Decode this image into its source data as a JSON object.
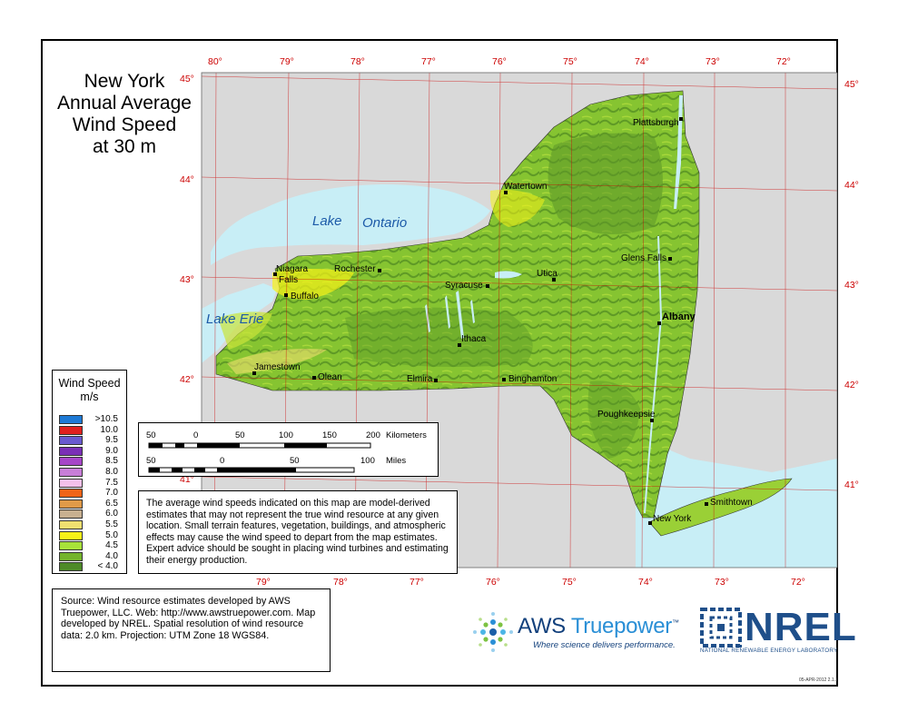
{
  "title": {
    "line1": "New York",
    "line2": "Annual Average",
    "line3": "Wind Speed",
    "line4": "at 30 m"
  },
  "longitude_labels_top": [
    "80°",
    "79°",
    "78°",
    "77°",
    "76°",
    "75°",
    "74°",
    "73°",
    "72°"
  ],
  "longitude_labels_bottom": [
    "79°",
    "78°",
    "77°",
    "76°",
    "75°",
    "74°",
    "73°",
    "72°"
  ],
  "latitude_labels_left": [
    "45°",
    "44°",
    "43°",
    "42°",
    "41°"
  ],
  "latitude_labels_right": [
    "45°",
    "44°",
    "43°",
    "42°",
    "41°"
  ],
  "lakes": {
    "ontario_1": "Lake",
    "ontario_2": "Ontario",
    "erie": "Lake Erie"
  },
  "cities": [
    {
      "name": "Plattsburgh"
    },
    {
      "name": "Watertown"
    },
    {
      "name": "Glens Falls"
    },
    {
      "name": "Niagara"
    },
    {
      "name": "Falls"
    },
    {
      "name": "Rochester"
    },
    {
      "name": "Buffalo"
    },
    {
      "name": "Utica"
    },
    {
      "name": "Syracuse"
    },
    {
      "name": "Albany"
    },
    {
      "name": "Ithaca"
    },
    {
      "name": "Jamestown"
    },
    {
      "name": "Olean"
    },
    {
      "name": "Elmira"
    },
    {
      "name": "Binghamton"
    },
    {
      "name": "Poughkeepsie"
    },
    {
      "name": "Smithtown"
    },
    {
      "name": "New York"
    }
  ],
  "legend": {
    "title1": "Wind Speed",
    "title2": "m/s",
    "entries": [
      {
        "label": ">10.5",
        "color": "#1e7ad6"
      },
      {
        "label": "10.0",
        "color": "#e0201e"
      },
      {
        "label": "9.5",
        "color": "#6a5ad0"
      },
      {
        "label": "9.0",
        "color": "#7a2fb6"
      },
      {
        "label": "8.5",
        "color": "#a646c8"
      },
      {
        "label": "8.0",
        "color": "#c87ed8"
      },
      {
        "label": "7.5",
        "color": "#f4c0ea"
      },
      {
        "label": "7.0",
        "color": "#f06418"
      },
      {
        "label": "6.5",
        "color": "#e09a48"
      },
      {
        "label": "6.0",
        "color": "#c8b090"
      },
      {
        "label": "5.5",
        "color": "#f0e070"
      },
      {
        "label": "5.0",
        "color": "#f6f218"
      },
      {
        "label": "4.5",
        "color": "#a8e23a"
      },
      {
        "label": "4.0",
        "color": "#74b42c"
      },
      {
        "label": "< 4.0",
        "color": "#4e8a28"
      }
    ]
  },
  "scale": {
    "km_ticks": [
      "50",
      "0",
      "50",
      "100",
      "150",
      "200"
    ],
    "km_unit": "Kilometers",
    "mi_ticks": [
      "50",
      "0",
      "50",
      "100"
    ],
    "mi_unit": "Miles"
  },
  "disclaimer": "The average wind speeds indicated on this map are model-derived estimates that may not represent the true wind resource at any given location. Small terrain features, vegetation, buildings, and atmospheric effects may cause the wind speed to depart from the map estimates. Expert advice should be sought in placing wind turbines and estimating their energy production.",
  "source": "Source: Wind resource estimates developed by AWS Truepower, LLC.  Web: http://www.awstruepower.com.  Map developed by NREL.  Spatial resolution of wind resource data:  2.0 km. Projection:  UTM Zone 18 WGS84.",
  "aws": {
    "name_a": "AWS ",
    "name_b": "Truepower",
    "tm": "™",
    "tagline": "Where science delivers performance."
  },
  "nrel": {
    "word": "NREL",
    "full": "NATIONAL RENEWABLE ENERGY LABORATORY"
  },
  "stamp": "05-APR-2012 2.1.1",
  "colors": {
    "water": "#c8eef6",
    "land_outside": "#d9d9d9",
    "graticule": "#cc0000",
    "state_base": "#7fbf2e"
  }
}
